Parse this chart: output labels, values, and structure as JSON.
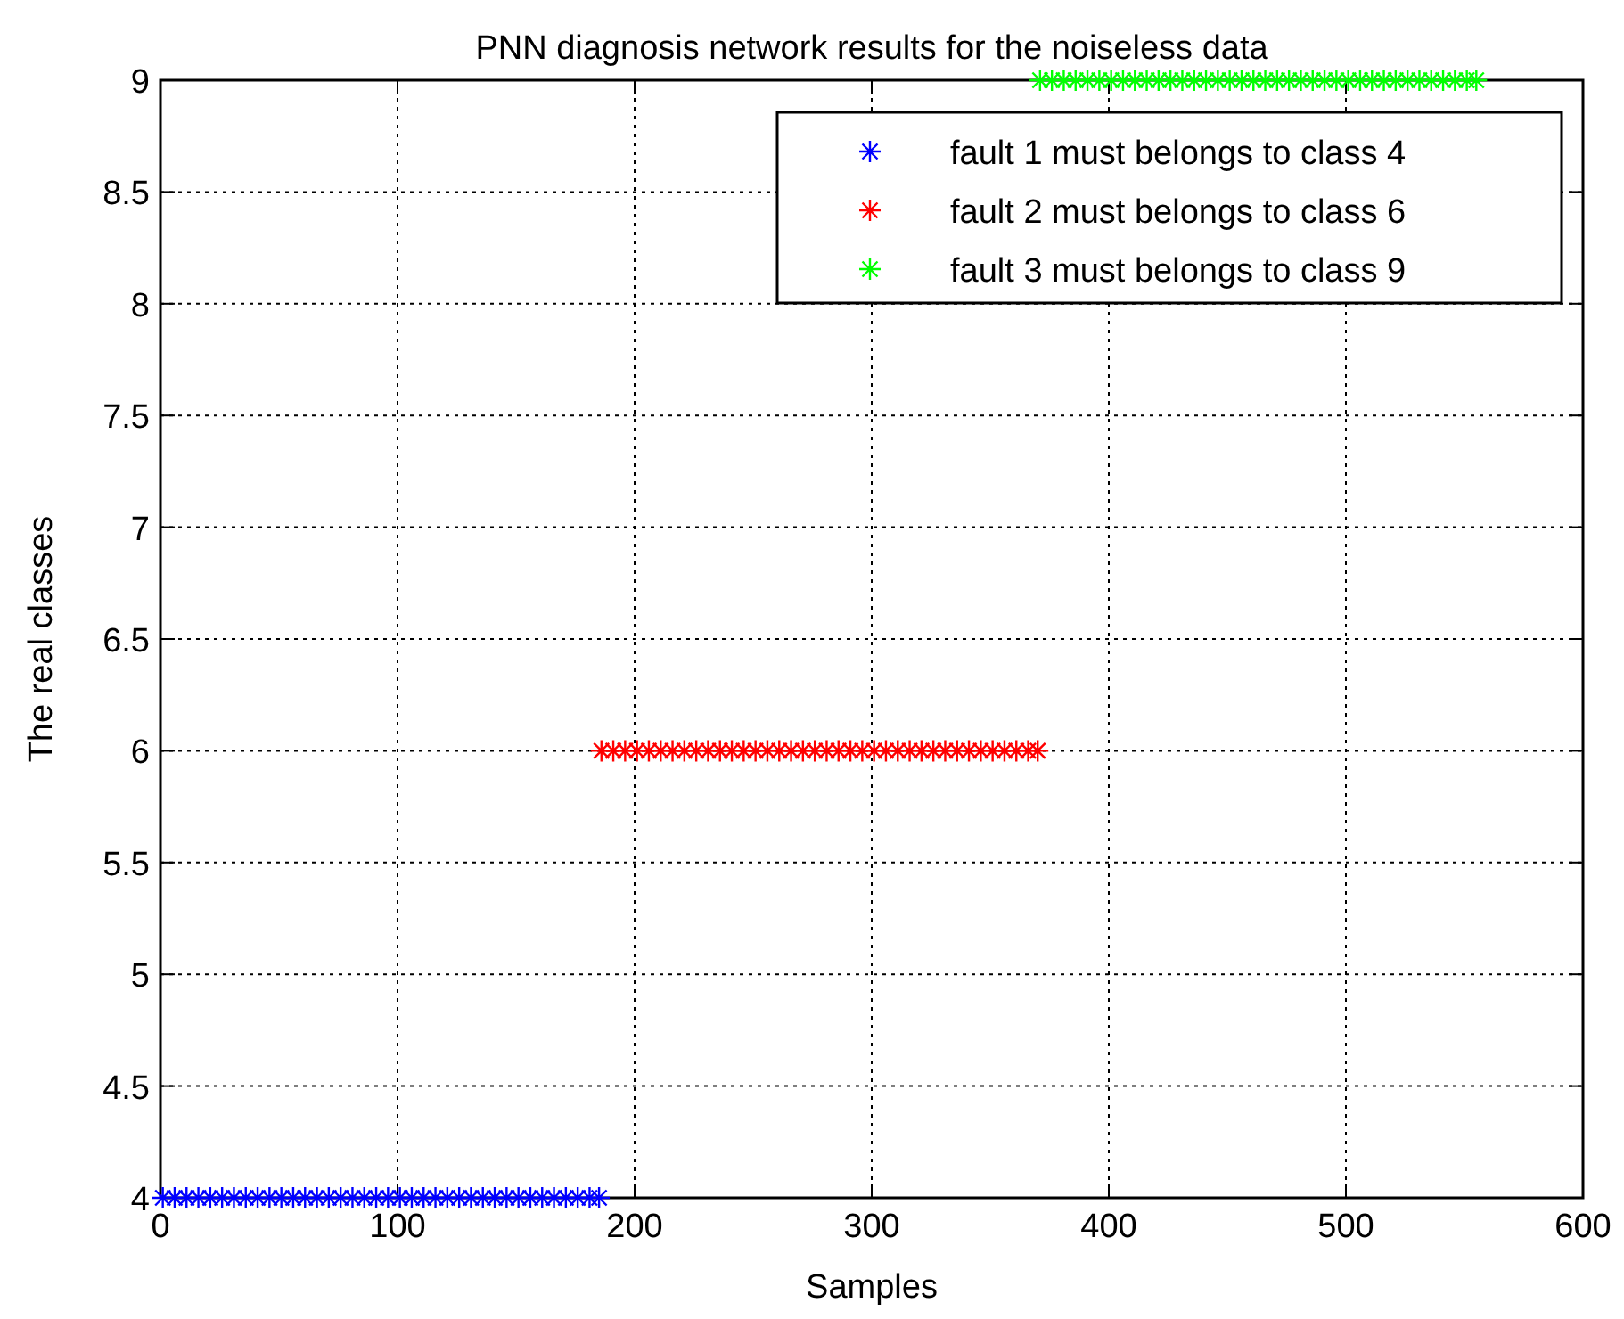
{
  "chart_data": {
    "type": "scatter",
    "title": "PNN diagnosis network results for the noiseless data",
    "xlabel": "Samples",
    "ylabel": "The real classes",
    "xlim": [
      0,
      600
    ],
    "ylim": [
      4,
      9
    ],
    "xticks": [
      0,
      100,
      200,
      300,
      400,
      500,
      600
    ],
    "yticks": [
      4,
      4.5,
      5,
      5.5,
      6,
      6.5,
      7,
      7.5,
      8,
      8.5,
      9
    ],
    "grid": true,
    "legend": "top right",
    "marker": "cross",
    "series": [
      {
        "name": "fault 1 must belongs to class 4",
        "color": "#0000ff",
        "x": [
          1,
          6,
          11,
          16,
          21,
          26,
          31,
          36,
          41,
          46,
          51,
          56,
          61,
          66,
          71,
          76,
          81,
          86,
          91,
          96,
          101,
          106,
          111,
          116,
          121,
          126,
          131,
          136,
          141,
          146,
          151,
          156,
          161,
          166,
          171,
          176,
          181,
          185
        ],
        "values": [
          4,
          4,
          4,
          4,
          4,
          4,
          4,
          4,
          4,
          4,
          4,
          4,
          4,
          4,
          4,
          4,
          4,
          4,
          4,
          4,
          4,
          4,
          4,
          4,
          4,
          4,
          4,
          4,
          4,
          4,
          4,
          4,
          4,
          4,
          4,
          4,
          4,
          4
        ]
      },
      {
        "name": "fault 2 must belongs to class 6",
        "color": "#ff0000",
        "x": [
          186,
          191,
          196,
          201,
          206,
          211,
          216,
          221,
          226,
          231,
          236,
          241,
          246,
          251,
          256,
          261,
          266,
          271,
          276,
          281,
          286,
          291,
          296,
          301,
          306,
          311,
          316,
          321,
          326,
          331,
          336,
          341,
          346,
          351,
          356,
          361,
          366,
          370
        ],
        "values": [
          6,
          6,
          6,
          6,
          6,
          6,
          6,
          6,
          6,
          6,
          6,
          6,
          6,
          6,
          6,
          6,
          6,
          6,
          6,
          6,
          6,
          6,
          6,
          6,
          6,
          6,
          6,
          6,
          6,
          6,
          6,
          6,
          6,
          6,
          6,
          6,
          6,
          6
        ]
      },
      {
        "name": "fault 3 must belongs to class 9",
        "color": "#00ff00",
        "x": [
          371,
          376,
          381,
          386,
          391,
          396,
          401,
          406,
          411,
          416,
          421,
          426,
          431,
          436,
          441,
          446,
          451,
          456,
          461,
          466,
          471,
          476,
          481,
          486,
          491,
          496,
          501,
          506,
          511,
          516,
          521,
          526,
          531,
          536,
          541,
          546,
          551,
          555
        ],
        "values": [
          9,
          9,
          9,
          9,
          9,
          9,
          9,
          9,
          9,
          9,
          9,
          9,
          9,
          9,
          9,
          9,
          9,
          9,
          9,
          9,
          9,
          9,
          9,
          9,
          9,
          9,
          9,
          9,
          9,
          9,
          9,
          9,
          9,
          9,
          9,
          9,
          9,
          9
        ]
      }
    ]
  }
}
